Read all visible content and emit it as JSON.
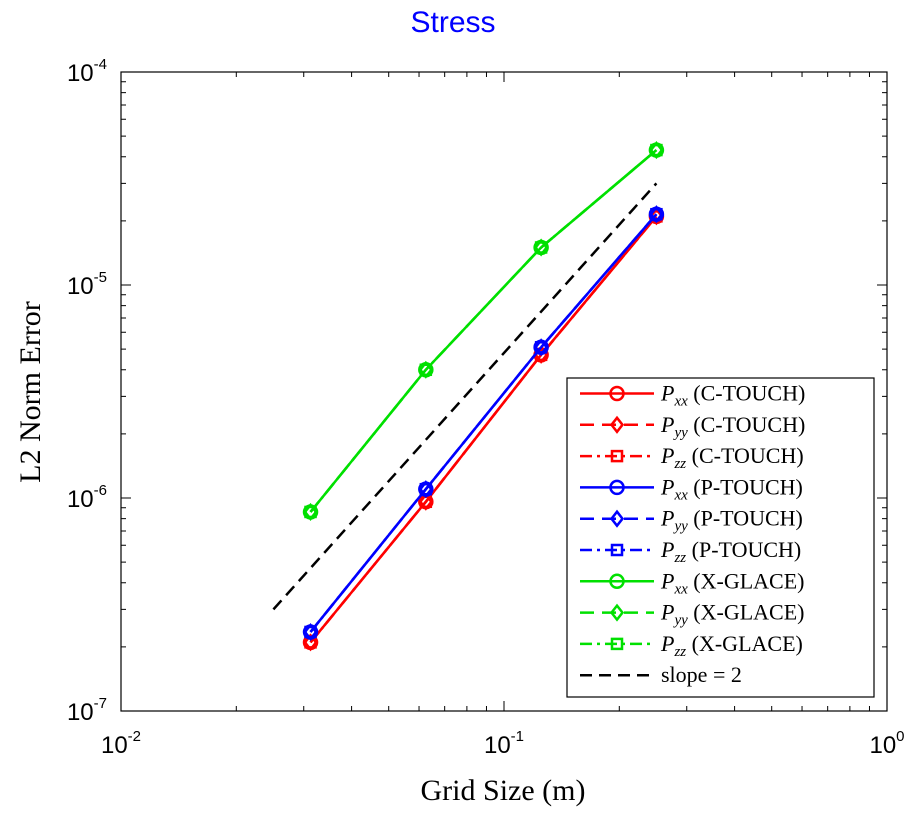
{
  "chart_data": {
    "type": "line",
    "title": "Stress",
    "xlabel": "Grid Size (m)",
    "ylabel": "L2 Norm Error",
    "xscale": "log",
    "yscale": "log",
    "xlim": [
      0.01,
      1
    ],
    "ylim": [
      1e-07,
      0.0001
    ],
    "x_ticks": [
      {
        "value": 0.01,
        "base": "10",
        "exp": "-2"
      },
      {
        "value": 0.1,
        "base": "10",
        "exp": "-1"
      },
      {
        "value": 1,
        "base": "10",
        "exp": "0"
      }
    ],
    "y_ticks": [
      {
        "value": 1e-07,
        "base": "10",
        "exp": "-7"
      },
      {
        "value": 1e-06,
        "base": "10",
        "exp": "-6"
      },
      {
        "value": 1e-05,
        "base": "10",
        "exp": "-5"
      },
      {
        "value": 0.0001,
        "base": "10",
        "exp": "-4"
      }
    ],
    "legend_position": "bottom-right",
    "series": [
      {
        "sym": "P",
        "sub": "xx",
        "tag": "(C-TOUCH)",
        "color": "#ff0000",
        "dash": "solid",
        "marker": "circle",
        "x": [
          0.03125,
          0.0625,
          0.125,
          0.25
        ],
        "y": [
          2.1e-07,
          9.6e-07,
          4.7e-06,
          2.1e-05
        ]
      },
      {
        "sym": "P",
        "sub": "yy",
        "tag": "(C-TOUCH)",
        "color": "#ff0000",
        "dash": "dashed",
        "marker": "diamond",
        "x": [
          0.03125,
          0.0625,
          0.125,
          0.25
        ],
        "y": [
          2.1e-07,
          9.6e-07,
          4.7e-06,
          2.1e-05
        ]
      },
      {
        "sym": "P",
        "sub": "zz",
        "tag": "(C-TOUCH)",
        "color": "#ff0000",
        "dash": "dashdot",
        "marker": "square",
        "x": [
          0.03125,
          0.0625,
          0.125,
          0.25
        ],
        "y": [
          2.1e-07,
          9.6e-07,
          4.7e-06,
          2.1e-05
        ]
      },
      {
        "sym": "P",
        "sub": "xx",
        "tag": "(P-TOUCH)",
        "color": "#0000ff",
        "dash": "solid",
        "marker": "circle",
        "x": [
          0.03125,
          0.0625,
          0.125,
          0.25
        ],
        "y": [
          2.35e-07,
          1.1e-06,
          5.1e-06,
          2.15e-05
        ]
      },
      {
        "sym": "P",
        "sub": "yy",
        "tag": "(P-TOUCH)",
        "color": "#0000ff",
        "dash": "dashed",
        "marker": "diamond",
        "x": [
          0.03125,
          0.0625,
          0.125,
          0.25
        ],
        "y": [
          2.35e-07,
          1.1e-06,
          5.1e-06,
          2.15e-05
        ]
      },
      {
        "sym": "P",
        "sub": "zz",
        "tag": "(P-TOUCH)",
        "color": "#0000ff",
        "dash": "dashdot",
        "marker": "square",
        "x": [
          0.03125,
          0.0625,
          0.125,
          0.25
        ],
        "y": [
          2.35e-07,
          1.1e-06,
          5.1e-06,
          2.15e-05
        ]
      },
      {
        "sym": "P",
        "sub": "xx",
        "tag": "(X-GLACE)",
        "color": "#00e000",
        "dash": "solid",
        "marker": "circle",
        "x": [
          0.03125,
          0.0625,
          0.125,
          0.25
        ],
        "y": [
          8.6e-07,
          4e-06,
          1.5e-05,
          4.3e-05
        ]
      },
      {
        "sym": "P",
        "sub": "yy",
        "tag": "(X-GLACE)",
        "color": "#00e000",
        "dash": "dashed",
        "marker": "diamond",
        "x": [
          0.03125,
          0.0625,
          0.125,
          0.25
        ],
        "y": [
          8.6e-07,
          4e-06,
          1.5e-05,
          4.3e-05
        ]
      },
      {
        "sym": "P",
        "sub": "zz",
        "tag": "(X-GLACE)",
        "color": "#00e000",
        "dash": "dashdot",
        "marker": "square",
        "x": [
          0.03125,
          0.0625,
          0.125,
          0.25
        ],
        "y": [
          8.6e-07,
          4e-06,
          1.5e-05,
          4.3e-05
        ]
      }
    ],
    "reference": {
      "label": "slope = 2",
      "color": "#000000",
      "dash": "dashed",
      "x": [
        0.025,
        0.25
      ],
      "y": [
        3e-07,
        3e-05
      ]
    }
  }
}
